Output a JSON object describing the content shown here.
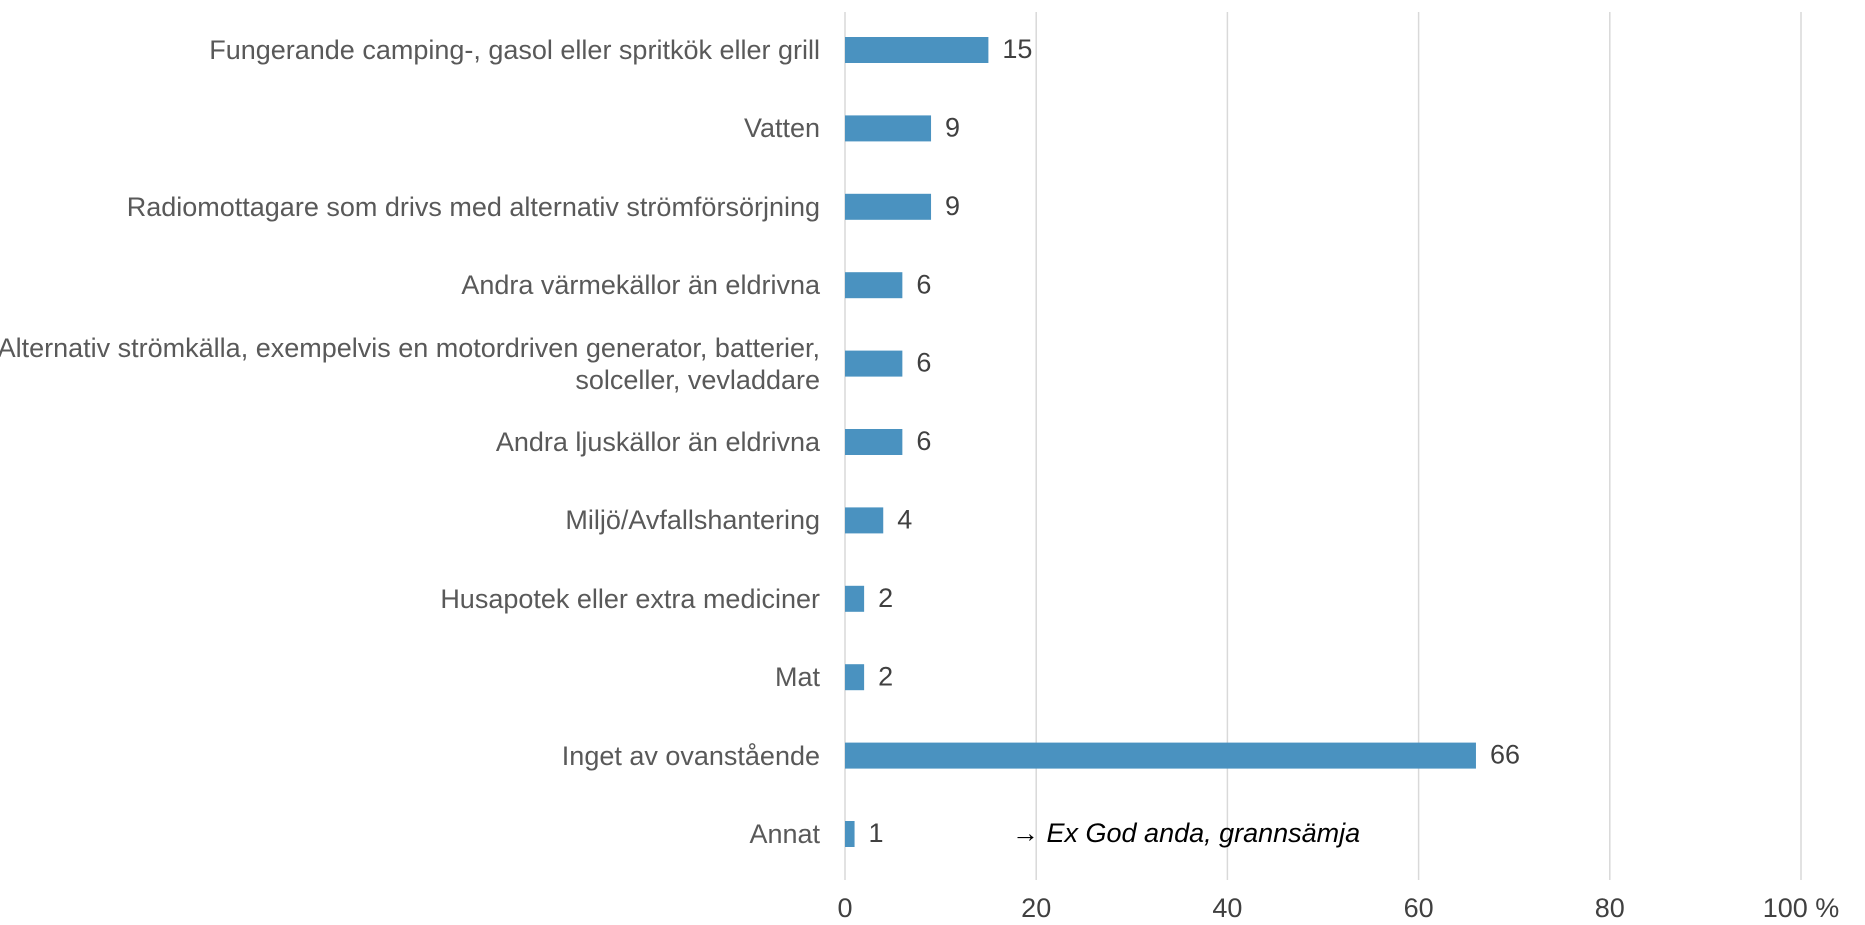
{
  "chart_data": {
    "type": "bar",
    "orientation": "horizontal",
    "categories": [
      "Fungerande camping-, gasol eller spritkök eller grill",
      "Vatten",
      "Radiomottagare som drivs med alternativ strömförsörjning",
      "Andra värmekällor än eldrivna",
      "Alternativ strömkälla, exempelvis en motordriven generator, batterier, solceller, vevladdare",
      "Andra ljuskällor än eldrivna",
      "Miljö/Avfallshantering",
      "Husapotek eller extra mediciner",
      "Mat",
      "Inget av ovanstående",
      "Annat"
    ],
    "values": [
      15,
      9,
      9,
      6,
      6,
      6,
      4,
      2,
      2,
      66,
      1
    ],
    "color": "#4a92c0",
    "xlim": [
      0,
      100
    ],
    "xticks": [
      0,
      20,
      40,
      60,
      80,
      {
        "value": 100,
        "label": "100 %"
      }
    ],
    "grid": true,
    "annotation": "→ Ex God anda, grannsämja"
  }
}
